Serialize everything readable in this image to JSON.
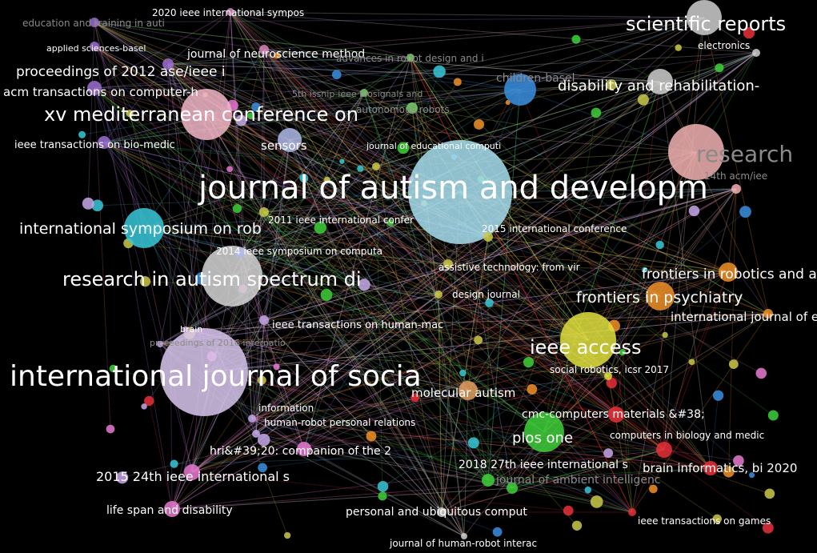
{
  "nodes": [
    {
      "label": "2020 ieee international sympos"
    },
    {
      "label": "education and training in auti"
    },
    {
      "label": "applied sciences-basel"
    },
    {
      "label": "journal of neuroscience method"
    },
    {
      "label": "proceedings of 2012 ase/ieee i"
    },
    {
      "label": "acm transactions on computer-h"
    },
    {
      "label": "xv mediterranean conference on"
    },
    {
      "label": "ieee transactions on bio-medic"
    },
    {
      "label": "sensors"
    },
    {
      "label": "journal of educational computi"
    },
    {
      "label": "autonomous robots"
    },
    {
      "label": "5th issnip-ieee biosignals and"
    },
    {
      "label": "advances in robot design and i"
    },
    {
      "label": "children-basel"
    },
    {
      "label": "scientific reports"
    },
    {
      "label": "electronics"
    },
    {
      "label": "disability and rehabilitation-"
    },
    {
      "label": "journal of autism and developm"
    },
    {
      "label": "research"
    },
    {
      "label": "14th acm/iee"
    },
    {
      "label": "international symposium on rob"
    },
    {
      "label": "2011 ieee international confer"
    },
    {
      "label": "2015 international conference"
    },
    {
      "label": "2014 ieee symposium on computa"
    },
    {
      "label": "research in autism spectrum di"
    },
    {
      "label": "assistive technology: from vir"
    },
    {
      "label": "frontiers in robotics and ai"
    },
    {
      "label": "frontiers in psychiatry"
    },
    {
      "label": "design journal"
    },
    {
      "label": "international journal of envir"
    },
    {
      "label": "brain"
    },
    {
      "label": "proceedings of 2016 internatio"
    },
    {
      "label": "ieee transactions on human-mac"
    },
    {
      "label": "ieee access"
    },
    {
      "label": "social robotics, icsr 2017"
    },
    {
      "label": "international journal of socia"
    },
    {
      "label": "molecular autism"
    },
    {
      "label": "information"
    },
    {
      "label": "human-robot personal relations"
    },
    {
      "label": "cmc-computers materials &#38;"
    },
    {
      "label": "computers in biology and medic"
    },
    {
      "label": "plos one"
    },
    {
      "label": "hri&#39;20: companion of the 2"
    },
    {
      "label": "2018 27th ieee international s"
    },
    {
      "label": "brain informatics, bi 2020"
    },
    {
      "label": "2015 24th ieee international s"
    },
    {
      "label": "journal of ambient intelligenc"
    },
    {
      "label": "life span and disability"
    },
    {
      "label": "personal and ubiquitous comput"
    },
    {
      "label": "ieee transactions on games"
    },
    {
      "label": "journal of human-robot interac"
    }
  ]
}
